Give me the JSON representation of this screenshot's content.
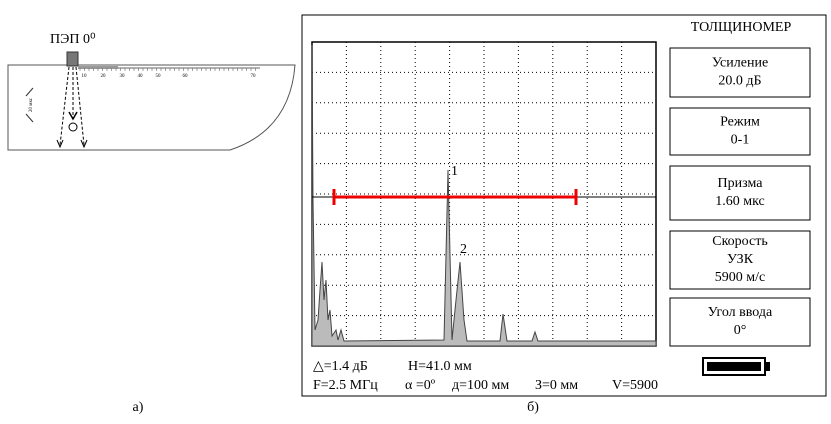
{
  "left_panel": {
    "probe_label": "ПЭП 0⁰",
    "ruler_labels": [
      "10",
      "20",
      "30",
      "40",
      "50",
      "60",
      "70"
    ],
    "time_label": "20 мкс",
    "caption": "а)"
  },
  "right_panel": {
    "title": "ТОЛЩИНОМЕР",
    "menu": [
      {
        "lines": [
          "Усиление",
          "20.0 дБ"
        ]
      },
      {
        "lines": [
          "Режим",
          "0-1"
        ]
      },
      {
        "lines": [
          "Призма",
          "1.60 мкс"
        ]
      },
      {
        "lines": [
          "Скорость",
          "УЗК",
          "5900 м/с"
        ]
      },
      {
        "lines": [
          "Угол ввода",
          "0°"
        ]
      }
    ],
    "peak_labels": [
      "1",
      "2"
    ],
    "status_row_1": [
      "△=1.4 дБ",
      "H=41.0 мм"
    ],
    "status_row_2": [
      "F=2.5 МГц",
      "α =0º",
      "д=100 мм",
      "З=0 мм",
      "V=5900"
    ],
    "caption": "б)"
  }
}
